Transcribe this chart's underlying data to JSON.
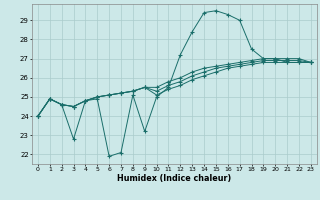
{
  "xlabel": "Humidex (Indice chaleur)",
  "bg_color": "#cce8e8",
  "grid_color": "#aacccc",
  "line_color": "#1a6e6a",
  "xlim": [
    -0.5,
    23.5
  ],
  "ylim": [
    21.5,
    29.85
  ],
  "xticks": [
    0,
    1,
    2,
    3,
    4,
    5,
    6,
    7,
    8,
    9,
    10,
    11,
    12,
    13,
    14,
    15,
    16,
    17,
    18,
    19,
    20,
    21,
    22,
    23
  ],
  "yticks": [
    22,
    23,
    24,
    25,
    26,
    27,
    28,
    29
  ],
  "lines": [
    [
      [
        0,
        24.0
      ],
      [
        1,
        24.9
      ],
      [
        2,
        24.6
      ],
      [
        3,
        22.8
      ],
      [
        4,
        24.8
      ],
      [
        5,
        24.9
      ],
      [
        6,
        21.9
      ],
      [
        7,
        22.1
      ],
      [
        8,
        25.1
      ],
      [
        9,
        23.2
      ],
      [
        10,
        25.0
      ],
      [
        11,
        25.5
      ],
      [
        12,
        27.2
      ],
      [
        13,
        28.4
      ],
      [
        14,
        29.4
      ],
      [
        15,
        29.5
      ],
      [
        16,
        29.3
      ],
      [
        17,
        29.0
      ],
      [
        18,
        27.5
      ],
      [
        19,
        27.0
      ],
      [
        20,
        27.0
      ],
      [
        21,
        26.8
      ],
      [
        22,
        26.8
      ],
      [
        23,
        26.8
      ]
    ],
    [
      [
        0,
        24.0
      ],
      [
        1,
        24.9
      ],
      [
        2,
        24.6
      ],
      [
        3,
        24.5
      ],
      [
        4,
        24.8
      ],
      [
        5,
        25.0
      ],
      [
        6,
        25.1
      ],
      [
        7,
        25.2
      ],
      [
        8,
        25.3
      ],
      [
        9,
        25.5
      ],
      [
        10,
        25.5
      ],
      [
        11,
        25.8
      ],
      [
        12,
        26.0
      ],
      [
        13,
        26.3
      ],
      [
        14,
        26.5
      ],
      [
        15,
        26.6
      ],
      [
        16,
        26.7
      ],
      [
        17,
        26.8
      ],
      [
        18,
        26.9
      ],
      [
        19,
        27.0
      ],
      [
        20,
        27.0
      ],
      [
        21,
        27.0
      ],
      [
        22,
        27.0
      ],
      [
        23,
        26.8
      ]
    ],
    [
      [
        0,
        24.0
      ],
      [
        1,
        24.9
      ],
      [
        2,
        24.6
      ],
      [
        3,
        24.5
      ],
      [
        4,
        24.8
      ],
      [
        5,
        25.0
      ],
      [
        6,
        25.1
      ],
      [
        7,
        25.2
      ],
      [
        8,
        25.3
      ],
      [
        9,
        25.5
      ],
      [
        10,
        25.1
      ],
      [
        11,
        25.4
      ],
      [
        12,
        25.6
      ],
      [
        13,
        25.9
      ],
      [
        14,
        26.1
      ],
      [
        15,
        26.3
      ],
      [
        16,
        26.5
      ],
      [
        17,
        26.6
      ],
      [
        18,
        26.7
      ],
      [
        19,
        26.8
      ],
      [
        20,
        26.8
      ],
      [
        21,
        26.8
      ],
      [
        22,
        26.8
      ],
      [
        23,
        26.8
      ]
    ],
    [
      [
        0,
        24.0
      ],
      [
        1,
        24.9
      ],
      [
        2,
        24.6
      ],
      [
        3,
        24.5
      ],
      [
        4,
        24.8
      ],
      [
        5,
        25.0
      ],
      [
        6,
        25.1
      ],
      [
        7,
        25.2
      ],
      [
        8,
        25.3
      ],
      [
        9,
        25.5
      ],
      [
        10,
        25.3
      ],
      [
        11,
        25.6
      ],
      [
        12,
        25.8
      ],
      [
        13,
        26.1
      ],
      [
        14,
        26.3
      ],
      [
        15,
        26.5
      ],
      [
        16,
        26.6
      ],
      [
        17,
        26.7
      ],
      [
        18,
        26.8
      ],
      [
        19,
        26.9
      ],
      [
        20,
        26.9
      ],
      [
        21,
        26.9
      ],
      [
        22,
        26.9
      ],
      [
        23,
        26.8
      ]
    ]
  ]
}
